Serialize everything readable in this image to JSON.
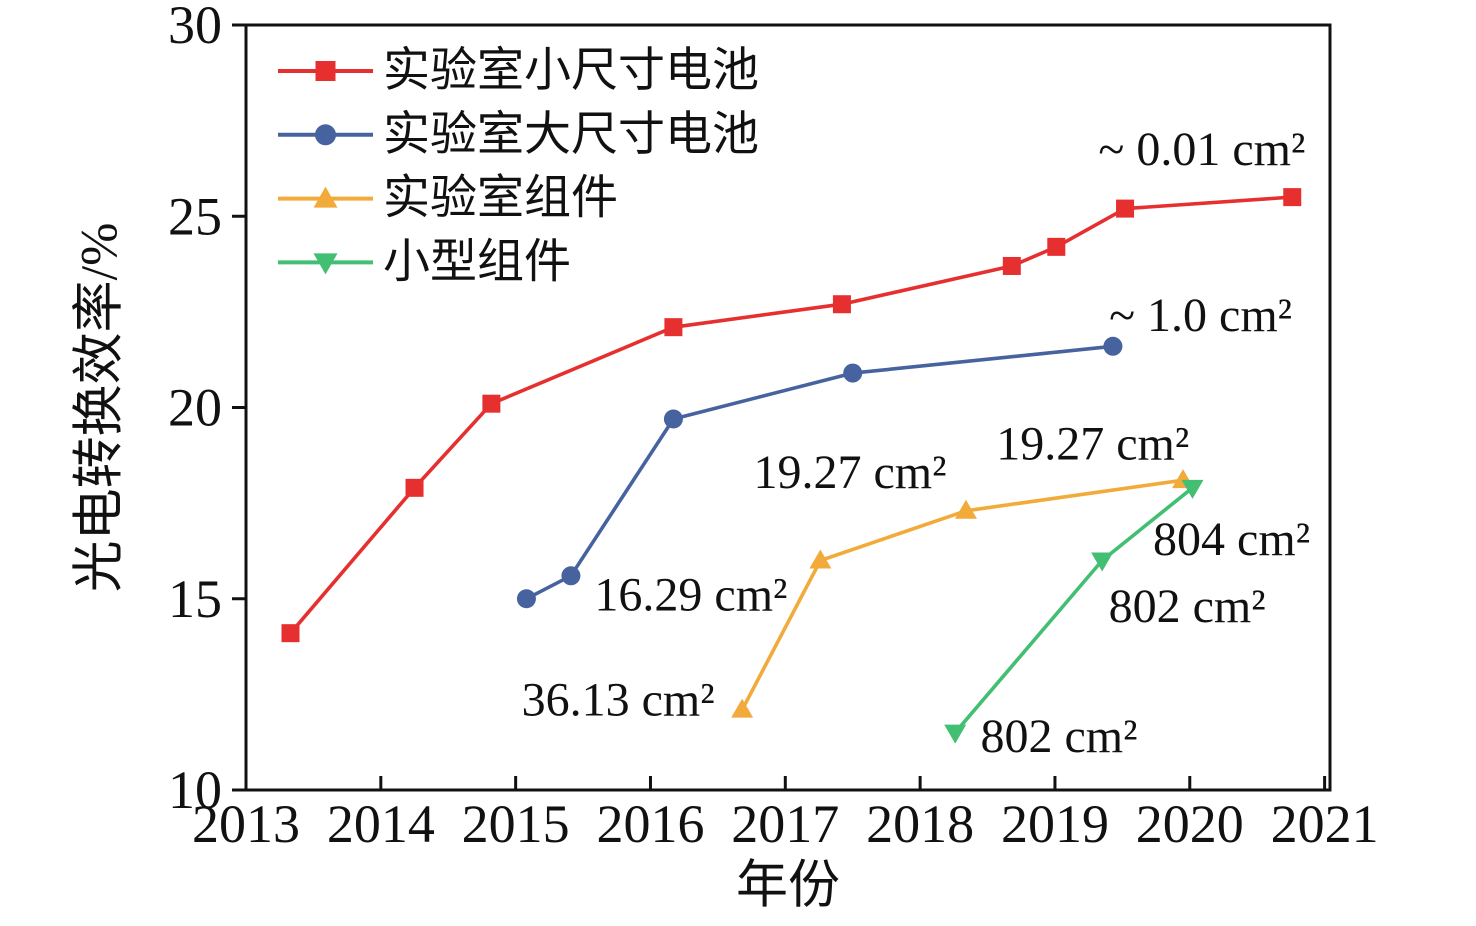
{
  "figure": {
    "background": "#ffffff",
    "text_color": "#111111",
    "axis_color": "#111111"
  },
  "chart_data": {
    "type": "line",
    "title": "",
    "xlabel": "年份",
    "ylabel": "光电转换效率/%",
    "xlim": [
      2013,
      2021.04
    ],
    "ylim": [
      10,
      30
    ],
    "x_ticks": [
      2013,
      2014,
      2015,
      2016,
      2017,
      2018,
      2019,
      2020,
      2021
    ],
    "y_ticks": [
      10,
      15,
      20,
      25,
      30
    ],
    "grid": false,
    "legend_position": "top-left",
    "series": [
      {
        "name": "实验室小尺寸电池",
        "marker": "square",
        "color": "#e5302f",
        "points": [
          [
            2013.33,
            14.1
          ],
          [
            2014.25,
            17.9
          ],
          [
            2014.82,
            20.1
          ],
          [
            2016.17,
            22.1
          ],
          [
            2017.42,
            22.7
          ],
          [
            2018.68,
            23.7
          ],
          [
            2019.01,
            24.2
          ],
          [
            2019.52,
            25.2
          ],
          [
            2020.76,
            25.5
          ]
        ]
      },
      {
        "name": "实验室大尺寸电池",
        "marker": "circle",
        "color": "#47639f",
        "points": [
          [
            2015.08,
            15.0
          ],
          [
            2015.41,
            15.6
          ],
          [
            2016.17,
            19.7
          ],
          [
            2017.5,
            20.9
          ],
          [
            2019.43,
            21.6
          ]
        ]
      },
      {
        "name": "实验室组件",
        "marker": "triangle-up",
        "color": "#f2ab3a",
        "points": [
          [
            2016.68,
            12.1
          ],
          [
            2017.26,
            16.0
          ],
          [
            2018.34,
            17.3
          ],
          [
            2019.95,
            18.1
          ]
        ]
      },
      {
        "name": "小型组件",
        "marker": "triangle-down",
        "color": "#42bf73",
        "points": [
          [
            2018.26,
            11.5
          ],
          [
            2019.35,
            16.0
          ],
          [
            2020.02,
            17.9
          ]
        ]
      }
    ],
    "annotations": [
      {
        "text": "~ 0.01 cm²",
        "x": 2020.09,
        "y": 26.75,
        "series": "实验室小尺寸电池"
      },
      {
        "text": "~ 1.0 cm²",
        "x": 2020.08,
        "y": 22.4,
        "series": "实验室大尺寸电池"
      },
      {
        "text": "16.29 cm²",
        "x": 2016.3,
        "y": 15.1,
        "series": "实验室大尺寸电池"
      },
      {
        "text": "36.13 cm²",
        "x": 2015.76,
        "y": 12.35,
        "series": "实验室组件"
      },
      {
        "text": "19.27 cm²",
        "x": 2017.48,
        "y": 18.3,
        "series": "实验室组件"
      },
      {
        "text": "19.27 cm²",
        "x": 2019.28,
        "y": 19.05,
        "series": "实验室组件"
      },
      {
        "text": "804 cm²",
        "x": 2020.31,
        "y": 16.55,
        "series": "小型组件"
      },
      {
        "text": "802 cm²",
        "x": 2019.98,
        "y": 14.8,
        "series": "小型组件"
      },
      {
        "text": "802 cm²",
        "x": 2019.03,
        "y": 11.4,
        "series": "小型组件"
      }
    ]
  }
}
